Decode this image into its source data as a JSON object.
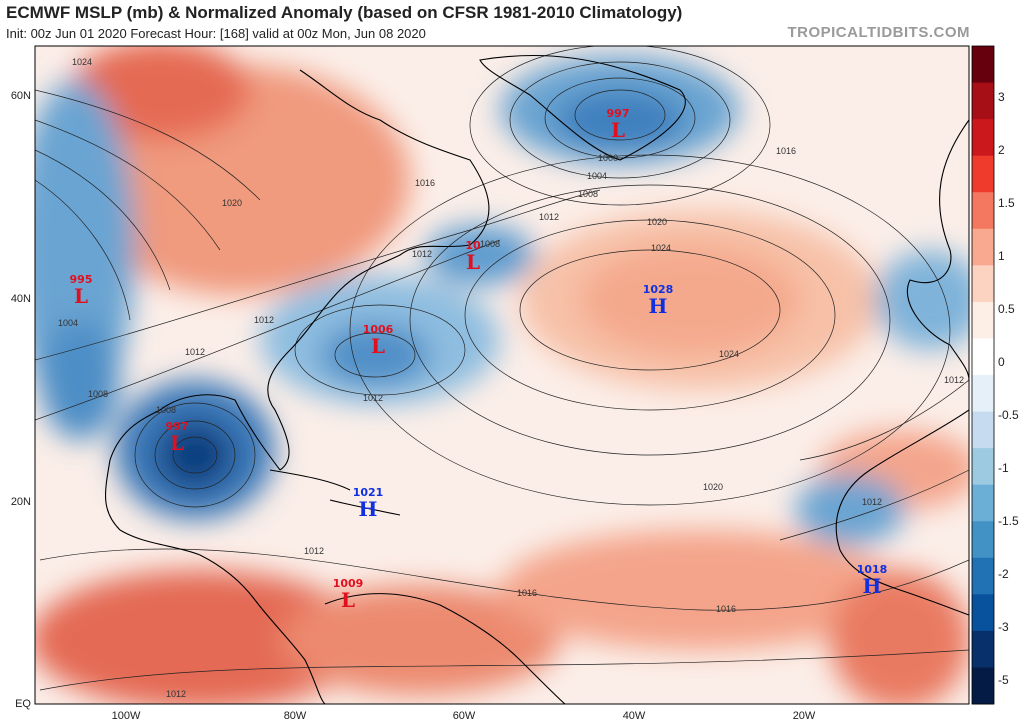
{
  "header": {
    "title": "ECMWF MSLP (mb) & Normalized Anomaly (based on CFSR 1981-2010 Climatology)",
    "subtitle": "Init: 00z Jun 01 2020   Forecast Hour: [168]   valid at 00z Mon, Jun 08 2020",
    "brand": "TROPICALTIDBITS.COM"
  },
  "axes": {
    "lat_labels": [
      "60N",
      "40N",
      "20N",
      "EQ"
    ],
    "lon_labels": [
      "100W",
      "80W",
      "60W",
      "40W",
      "20W"
    ]
  },
  "colorbar": {
    "labels": [
      "3",
      "2",
      "1.5",
      "1",
      "0.5",
      "0",
      "-0.5",
      "-1",
      "-1.5",
      "-2",
      "-3",
      "-5"
    ],
    "colors": [
      "#67000d",
      "#a50f15",
      "#cb181d",
      "#ef3b2c",
      "#f4785f",
      "#f8a98f",
      "#fcd3c1",
      "#fdeee6",
      "#ffffff",
      "#e6f0f8",
      "#c6dbef",
      "#9ecae1",
      "#6baed6",
      "#4292c6",
      "#2171b5",
      "#08519c",
      "#08306b",
      "#041c45"
    ]
  },
  "systems": [
    {
      "type": "L",
      "value": "997",
      "name": "low-greenland"
    },
    {
      "type": "L",
      "value": "1008",
      "display": "10",
      "name": "low-newfoundland"
    },
    {
      "type": "L",
      "value": "995",
      "name": "low-rockies"
    },
    {
      "type": "L",
      "value": "1006",
      "name": "low-carolinas"
    },
    {
      "type": "L",
      "value": "997",
      "name": "low-gulf"
    },
    {
      "type": "H",
      "value": "1028",
      "name": "high-azores"
    },
    {
      "type": "H",
      "value": "1021",
      "name": "high-hispaniola"
    },
    {
      "type": "L",
      "value": "1009",
      "name": "low-colombia"
    },
    {
      "type": "H",
      "value": "1018",
      "name": "high-west-africa"
    }
  ],
  "isobar_labels": [
    "1024",
    "1020",
    "1016",
    "1012",
    "1008",
    "1004",
    "1000",
    "1016",
    "1008",
    "1012",
    "1020",
    "1024",
    "1024",
    "1012",
    "1012",
    "1008",
    "1012",
    "1020",
    "1012",
    "1012",
    "1016",
    "1016",
    "1012",
    "1004",
    "1012",
    "1008"
  ]
}
